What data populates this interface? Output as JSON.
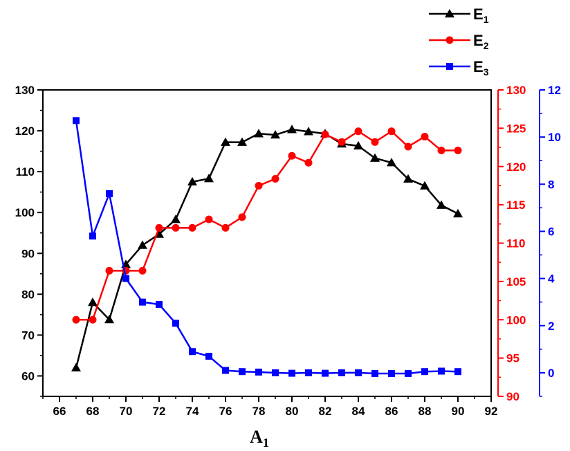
{
  "chart_data": {
    "type": "line",
    "xlabel": "A",
    "xlabel_subscript": "1",
    "x_ticks": [
      "66",
      "68",
      "70",
      "72",
      "74",
      "76",
      "78",
      "80",
      "82",
      "84",
      "86",
      "88",
      "90",
      "92"
    ],
    "xlim": [
      65,
      92
    ],
    "axes": [
      {
        "id": "left",
        "color": "#000000",
        "ylim": [
          55,
          130
        ],
        "ticks": [
          "60",
          "70",
          "80",
          "90",
          "100",
          "110",
          "120",
          "130"
        ]
      },
      {
        "id": "right1",
        "color": "#ff0000",
        "ylim": [
          90,
          130
        ],
        "ticks": [
          "90",
          "95",
          "100",
          "105",
          "110",
          "115",
          "120",
          "125",
          "130"
        ]
      },
      {
        "id": "right2",
        "color": "#0000ff",
        "ylim": [
          -1,
          12
        ],
        "ticks": [
          "0",
          "2",
          "4",
          "6",
          "8",
          "10",
          "12"
        ]
      }
    ],
    "legend_position": "top-right",
    "series": [
      {
        "name": "E",
        "name_subscript": "1",
        "axis": "left",
        "color": "#000000",
        "marker": "triangle",
        "x": [
          67,
          68,
          69,
          70,
          71,
          72,
          73,
          74,
          75,
          76,
          77,
          78,
          79,
          80,
          81,
          82,
          83,
          84,
          85,
          86,
          87,
          88,
          89,
          90
        ],
        "y": [
          62.0,
          78.0,
          73.8,
          87.3,
          92.0,
          94.7,
          98.3,
          107.5,
          108.3,
          117.2,
          117.2,
          119.3,
          119.0,
          120.3,
          119.8,
          119.3,
          116.8,
          116.3,
          113.3,
          112.2,
          108.2,
          106.5,
          101.8,
          99.7
        ]
      },
      {
        "name": "E",
        "name_subscript": "2",
        "axis": "right1",
        "color": "#ff0000",
        "marker": "circle",
        "x": [
          67,
          68,
          69,
          70,
          71,
          72,
          73,
          74,
          75,
          76,
          77,
          78,
          79,
          80,
          81,
          82,
          83,
          84,
          85,
          86,
          87,
          88,
          89,
          90
        ],
        "y": [
          100.0,
          100.0,
          106.4,
          106.4,
          106.4,
          112.0,
          112.0,
          112.0,
          113.1,
          112.0,
          113.4,
          117.5,
          118.4,
          121.4,
          120.5,
          124.2,
          123.2,
          124.6,
          123.2,
          124.6,
          122.6,
          123.9,
          122.1,
          122.1
        ]
      },
      {
        "name": "E",
        "name_subscript": "3",
        "axis": "right2",
        "color": "#0000ff",
        "marker": "square",
        "x": [
          67,
          68,
          69,
          70,
          71,
          72,
          73,
          74,
          75,
          76,
          77,
          78,
          79,
          80,
          81,
          82,
          83,
          84,
          85,
          86,
          87,
          88,
          89,
          90
        ],
        "y": [
          10.7,
          5.8,
          7.6,
          4.0,
          3.0,
          2.9,
          2.1,
          0.9,
          0.7,
          0.1,
          0.05,
          0.03,
          0.0,
          -0.02,
          0.0,
          -0.02,
          0.0,
          0.0,
          -0.03,
          -0.03,
          -0.03,
          0.05,
          0.07,
          0.05
        ]
      }
    ]
  }
}
